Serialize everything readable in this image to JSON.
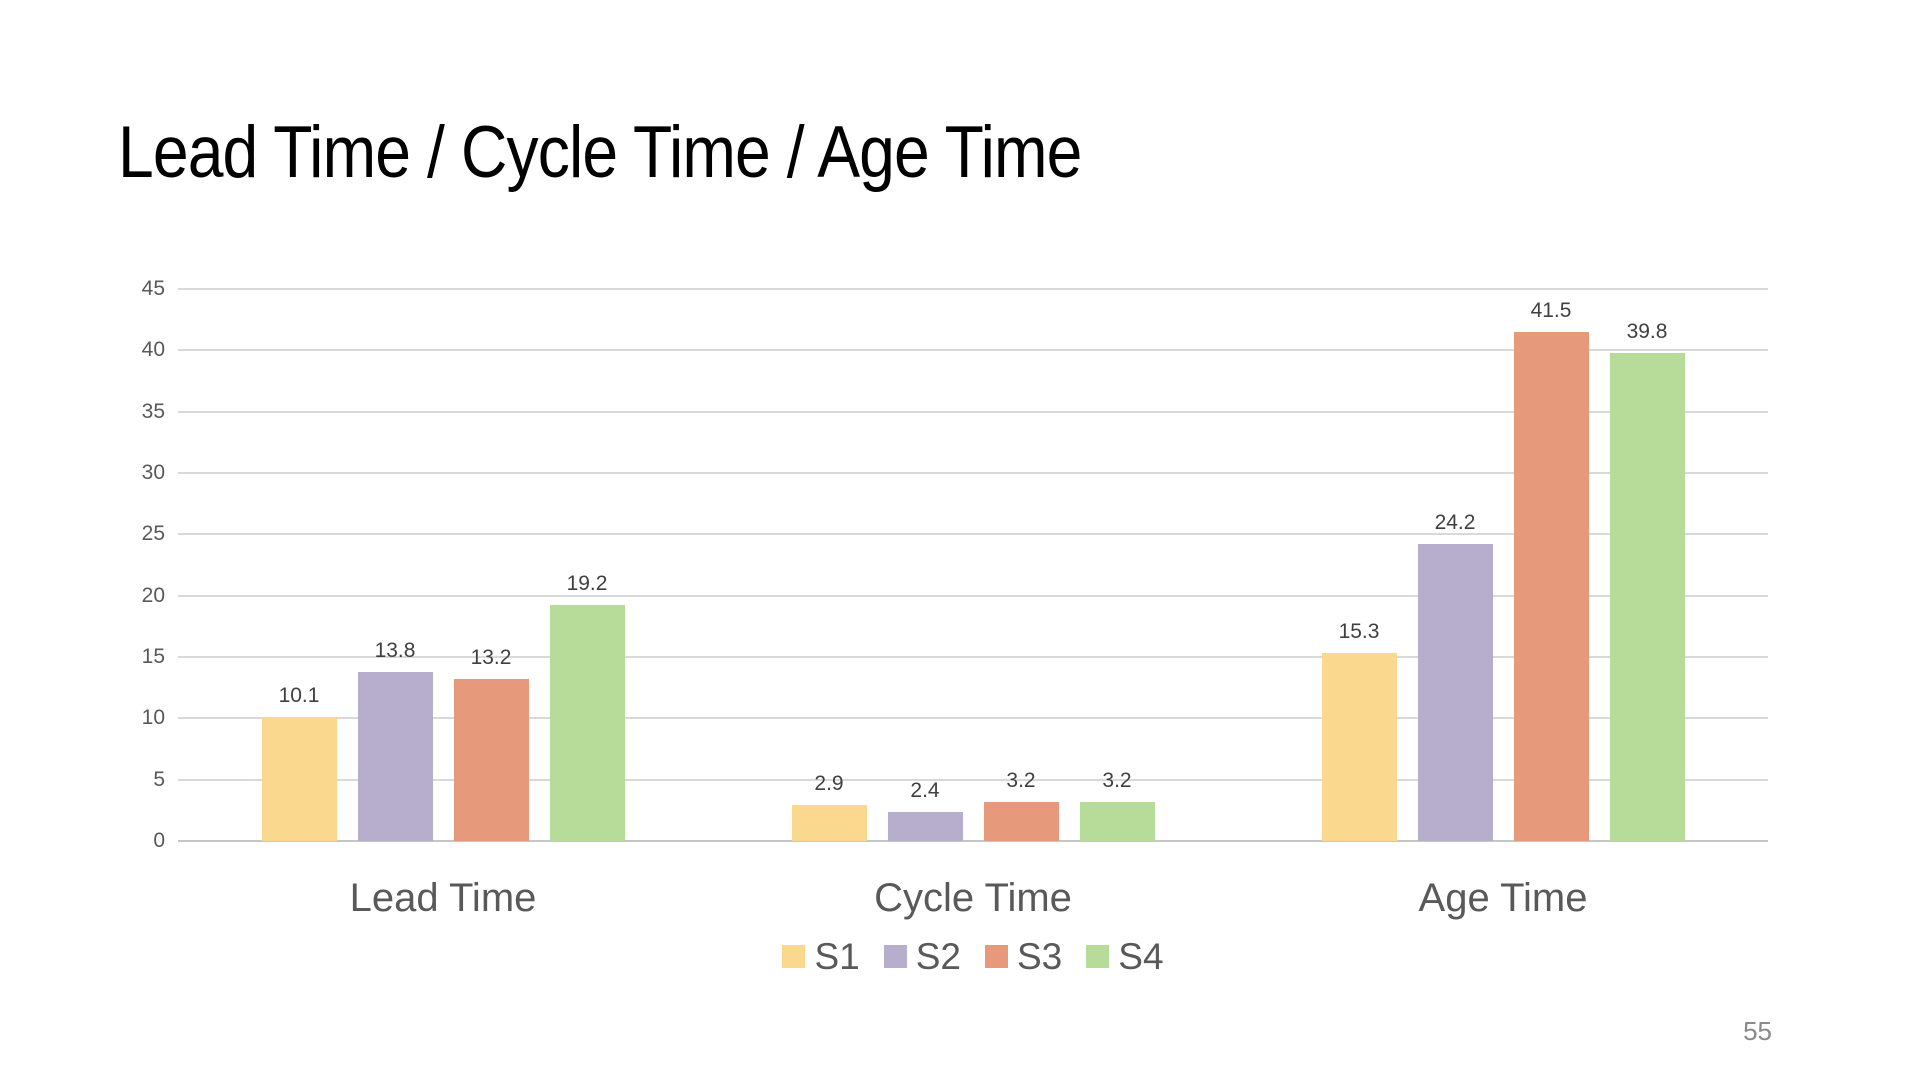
{
  "slide": {
    "title": "Lead Time / Cycle Time / Age Time",
    "page_number": "55"
  },
  "chart_data": {
    "type": "bar",
    "title": "",
    "xlabel": "",
    "ylabel": "",
    "categories": [
      "Lead Time",
      "Cycle Time",
      "Age Time"
    ],
    "series": [
      {
        "name": "S1",
        "color": "#FAD98F",
        "values": [
          10.1,
          2.9,
          15.3
        ]
      },
      {
        "name": "S2",
        "color": "#B7ADCC",
        "values": [
          13.8,
          2.4,
          24.2
        ]
      },
      {
        "name": "S3",
        "color": "#E79A7B",
        "values": [
          13.2,
          3.2,
          41.5
        ]
      },
      {
        "name": "S4",
        "color": "#B7DC99",
        "values": [
          19.2,
          3.2,
          39.8
        ]
      }
    ],
    "ylim": [
      0,
      45
    ],
    "ytick_step": 5,
    "grid": true,
    "data_labels": true,
    "legend_position": "bottom"
  },
  "colors": {
    "background": "#FFFFFF",
    "gridline": "#D9D9D9",
    "axis_label": "#595959",
    "data_label": "#404040",
    "category_label": "#595959",
    "legend_label": "#595959",
    "title": "#000000",
    "page_number": "#8A8A8A"
  }
}
